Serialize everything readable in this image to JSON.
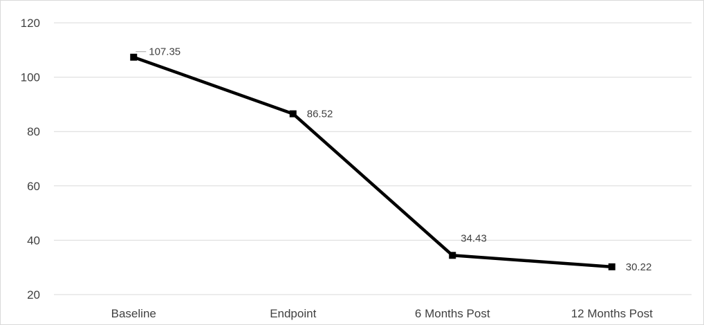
{
  "chart_data": {
    "type": "line",
    "title": "",
    "xlabel": "",
    "ylabel": "",
    "categories": [
      "Baseline",
      "Endpoint",
      "6 Months Post",
      "12 Months Post"
    ],
    "series": [
      {
        "values": [
          107.35,
          86.52,
          34.43,
          30.22
        ],
        "data_labels": [
          "107.35",
          "86.52",
          "34.43",
          "30.22"
        ],
        "color": "#000000",
        "marker": "square"
      }
    ],
    "ylim": [
      20,
      120
    ],
    "yticks": [
      20,
      40,
      60,
      80,
      100,
      120
    ],
    "ytick_labels": [
      "20",
      "40",
      "60",
      "80",
      "100",
      "120"
    ],
    "grid": "horizontal",
    "gridline_color": "#d9d9d9",
    "legend": "none"
  }
}
